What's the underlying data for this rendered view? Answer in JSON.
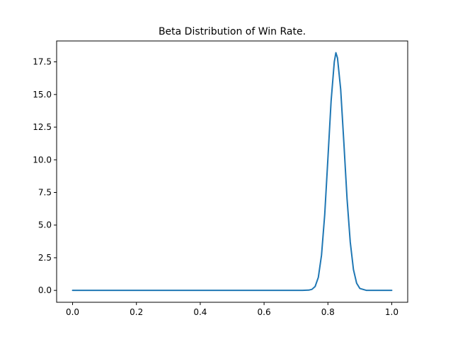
{
  "chart_data": {
    "type": "line",
    "title": "Beta Distribution of Win Rate.",
    "xlabel": "",
    "ylabel": "",
    "xlim": [
      -0.05,
      1.05
    ],
    "ylim": [
      -0.91,
      19.1
    ],
    "x_ticks": [
      0.0,
      0.2,
      0.4,
      0.6,
      0.8,
      1.0
    ],
    "x_tick_labels": [
      "0.0",
      "0.2",
      "0.4",
      "0.6",
      "0.8",
      "1.0"
    ],
    "y_ticks": [
      0.0,
      2.5,
      5.0,
      7.5,
      10.0,
      12.5,
      15.0,
      17.5
    ],
    "y_tick_labels": [
      "0.0",
      "2.5",
      "5.0",
      "7.5",
      "10.0",
      "12.5",
      "15.0",
      "17.5"
    ],
    "grid": false,
    "series": [
      {
        "color": "#1f77b4",
        "x": [
          0.0,
          0.1,
          0.2,
          0.3,
          0.4,
          0.5,
          0.6,
          0.7,
          0.72,
          0.74,
          0.75,
          0.76,
          0.77,
          0.78,
          0.79,
          0.8,
          0.81,
          0.82,
          0.825,
          0.83,
          0.84,
          0.85,
          0.86,
          0.87,
          0.88,
          0.89,
          0.9,
          0.92,
          0.95,
          1.0
        ],
        "y": [
          0.0,
          0.0,
          0.0,
          0.0,
          0.0,
          0.0,
          0.0,
          0.0,
          0.001,
          0.02,
          0.08,
          0.3,
          1.0,
          2.7,
          5.8,
          10.1,
          14.5,
          17.5,
          18.2,
          17.8,
          15.4,
          11.3,
          7.0,
          3.7,
          1.6,
          0.55,
          0.15,
          0.005,
          0.0,
          0.0
        ]
      }
    ]
  }
}
